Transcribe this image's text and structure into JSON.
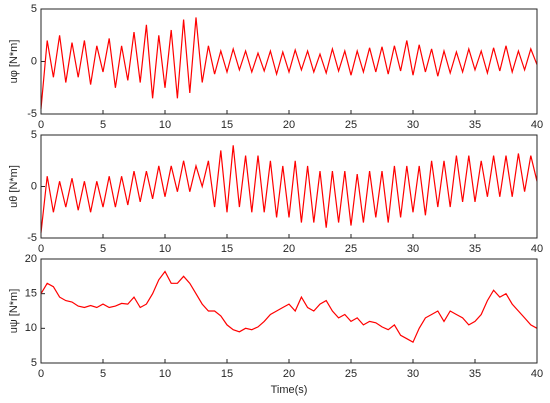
{
  "chart_data": [
    {
      "type": "line",
      "ylabel": "uφ [N*m]",
      "xlim": [
        0,
        40
      ],
      "ylim": [
        -5,
        5
      ],
      "xticks": [
        0,
        5,
        10,
        15,
        20,
        25,
        30,
        35,
        40
      ],
      "yticks": [
        -5,
        0,
        5
      ],
      "x": [
        0,
        0.5,
        1,
        1.5,
        2,
        2.5,
        3,
        3.5,
        4,
        4.5,
        5,
        5.5,
        6,
        6.5,
        7,
        7.5,
        8,
        8.5,
        9,
        9.5,
        10,
        10.5,
        11,
        11.5,
        12,
        12.5,
        13,
        13.5,
        14,
        14.5,
        15,
        15.5,
        16,
        16.5,
        17,
        17.5,
        18,
        18.5,
        19,
        19.5,
        20,
        20.5,
        21,
        21.5,
        22,
        22.5,
        23,
        23.5,
        24,
        24.5,
        25,
        25.5,
        26,
        26.5,
        27,
        27.5,
        28,
        28.5,
        29,
        29.5,
        30,
        30.5,
        31,
        31.5,
        32,
        32.5,
        33,
        33.5,
        34,
        34.5,
        35,
        35.5,
        36,
        36.5,
        37,
        37.5,
        38,
        38.5,
        39,
        39.5,
        40
      ],
      "series": [
        {
          "color": "#ff0000",
          "values": [
            -4.5,
            2,
            -1.5,
            2.5,
            -2,
            1.8,
            -1.5,
            2,
            -2.2,
            1.5,
            -1,
            2.2,
            -2.5,
            1.5,
            -1.8,
            2.8,
            -2,
            3.5,
            -3.5,
            2.5,
            -2.5,
            3,
            -3.5,
            4,
            -3,
            4.2,
            -2,
            1.5,
            -1.2,
            1,
            -1,
            1.2,
            -0.8,
            1,
            -1,
            0.8,
            -0.9,
            1,
            -1.2,
            0.9,
            -1,
            1.1,
            -0.8,
            1,
            -1,
            0.7,
            -1.1,
            1.2,
            -0.9,
            1,
            -1.3,
            1,
            -1,
            1.3,
            -1,
            1.4,
            -1.2,
            1.5,
            -0.9,
            2,
            -1.3,
            1.6,
            -1,
            1.2,
            -1.4,
            1,
            -1.1,
            0.9,
            -1,
            1.2,
            -0.8,
            1,
            -1.1,
            1.3,
            -0.9,
            1.5,
            -1,
            1,
            -0.8,
            1.2,
            -0.3
          ]
        }
      ]
    },
    {
      "type": "line",
      "ylabel": "uθ [N*m]",
      "xlim": [
        0,
        40
      ],
      "ylim": [
        -5,
        5
      ],
      "xticks": [
        0,
        5,
        10,
        15,
        20,
        25,
        30,
        35,
        40
      ],
      "yticks": [
        -5,
        0,
        5
      ],
      "x": [
        0,
        0.5,
        1,
        1.5,
        2,
        2.5,
        3,
        3.5,
        4,
        4.5,
        5,
        5.5,
        6,
        6.5,
        7,
        7.5,
        8,
        8.5,
        9,
        9.5,
        10,
        10.5,
        11,
        11.5,
        12,
        12.5,
        13,
        13.5,
        14,
        14.5,
        15,
        15.5,
        16,
        16.5,
        17,
        17.5,
        18,
        18.5,
        19,
        19.5,
        20,
        20.5,
        21,
        21.5,
        22,
        22.5,
        23,
        23.5,
        24,
        24.5,
        25,
        25.5,
        26,
        26.5,
        27,
        27.5,
        28,
        28.5,
        29,
        29.5,
        30,
        30.5,
        31,
        31.5,
        32,
        32.5,
        33,
        33.5,
        34,
        34.5,
        35,
        35.5,
        36,
        36.5,
        37,
        37.5,
        38,
        38.5,
        39,
        39.5,
        40
      ],
      "series": [
        {
          "color": "#ff0000",
          "values": [
            -4.5,
            1,
            -2.5,
            0.5,
            -2,
            0.8,
            -2.3,
            0.5,
            -2.5,
            0.5,
            -2,
            1,
            -2,
            1,
            -1.8,
            1.5,
            -1.5,
            1.5,
            -1.2,
            2,
            -1,
            2,
            -0.5,
            2.5,
            -0.5,
            2,
            0,
            2.5,
            -2,
            3.5,
            -2.5,
            4,
            -2,
            3,
            -2.5,
            3,
            -2.5,
            2.5,
            -3,
            2,
            -3,
            2.5,
            -3.5,
            2,
            -3.5,
            1.5,
            -4,
            1.5,
            -3.5,
            1.5,
            -3.8,
            1.2,
            -3.5,
            1.5,
            -3,
            1.5,
            -3.5,
            2,
            -3,
            2,
            -2.5,
            2,
            -2.8,
            2.5,
            -2,
            2.5,
            -2,
            3,
            -1.5,
            3,
            -1.5,
            2.5,
            -1,
            3,
            -1,
            3,
            -1,
            3.2,
            -0.5,
            3,
            0.5
          ]
        }
      ]
    },
    {
      "type": "line",
      "ylabel": "uψ [N*m]",
      "xlabel": "Time(s)",
      "xlim": [
        0,
        40
      ],
      "ylim": [
        5,
        20
      ],
      "xticks": [
        0,
        5,
        10,
        15,
        20,
        25,
        30,
        35,
        40
      ],
      "yticks": [
        5,
        10,
        15,
        20
      ],
      "x": [
        0,
        0.5,
        1,
        1.5,
        2,
        2.5,
        3,
        3.5,
        4,
        4.5,
        5,
        5.5,
        6,
        6.5,
        7,
        7.5,
        8,
        8.5,
        9,
        9.5,
        10,
        10.5,
        11,
        11.5,
        12,
        12.5,
        13,
        13.5,
        14,
        14.5,
        15,
        15.5,
        16,
        16.5,
        17,
        17.5,
        18,
        18.5,
        19,
        19.5,
        20,
        20.5,
        21,
        21.5,
        22,
        22.5,
        23,
        23.5,
        24,
        24.5,
        25,
        25.5,
        26,
        26.5,
        27,
        27.5,
        28,
        28.5,
        29,
        29.5,
        30,
        30.5,
        31,
        31.5,
        32,
        32.5,
        33,
        33.5,
        34,
        34.5,
        35,
        35.5,
        36,
        36.5,
        37,
        37.5,
        38,
        38.5,
        39,
        39.5,
        40
      ],
      "series": [
        {
          "color": "#ff0000",
          "values": [
            15,
            16.5,
            16,
            14.5,
            14,
            13.8,
            13.2,
            13,
            13.3,
            13,
            13.5,
            13,
            13.2,
            13.6,
            13.5,
            14.5,
            13,
            13.5,
            15,
            17,
            18.2,
            16.5,
            16.5,
            17.5,
            16.5,
            15,
            13.5,
            12.5,
            12.5,
            11.8,
            10.5,
            9.8,
            9.5,
            10,
            9.8,
            10.2,
            11,
            12,
            12.5,
            13,
            13.5,
            12.5,
            14.5,
            13,
            12.5,
            13.5,
            14,
            12.5,
            11.5,
            12,
            11,
            11.5,
            10.5,
            11,
            10.8,
            10.2,
            9.8,
            10.5,
            9,
            8.5,
            8,
            10,
            11.5,
            12,
            12.5,
            11,
            12.5,
            12,
            11.5,
            10.5,
            11,
            12,
            14,
            15.5,
            14.5,
            15,
            13.5,
            12.5,
            11.5,
            10.5,
            10
          ]
        }
      ]
    }
  ]
}
